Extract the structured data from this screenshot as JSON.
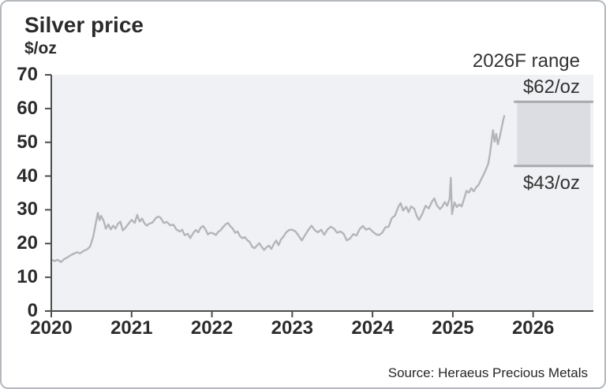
{
  "card": {
    "title": "Silver price",
    "unit_label": "$/oz",
    "source": "Source: Heraeus Precious Metals"
  },
  "chart_data": {
    "type": "line",
    "title": "Silver price",
    "ylabel": "$/oz",
    "xlabel": "",
    "legend": "none",
    "grid": false,
    "xlim": [
      2020,
      2026.75
    ],
    "ylim": [
      0,
      70
    ],
    "x_ticks": [
      2020,
      2021,
      2022,
      2023,
      2024,
      2025,
      2026
    ],
    "y_ticks": [
      0,
      10,
      20,
      30,
      40,
      50,
      60,
      70
    ],
    "forecast": {
      "label": "2026F range",
      "high_label": "$62/oz",
      "low_label": "$43/oz",
      "high": 62,
      "low": 43,
      "x_start": 2025.76,
      "x_end": 2026.75
    },
    "colors": {
      "plot_bg": "#f0f1f4",
      "line": "#b4b5b9",
      "box_fill": "#dcdde2",
      "box_edge": "#a9aaae",
      "axis": "#4d4d4d",
      "text": "#2b2b2b"
    },
    "series": [
      {
        "name": "Silver price ($/oz)",
        "points": [
          [
            2020.0,
            15.3
          ],
          [
            2020.04,
            14.8
          ],
          [
            2020.08,
            15.2
          ],
          [
            2020.12,
            14.5
          ],
          [
            2020.16,
            15.4
          ],
          [
            2020.2,
            15.9
          ],
          [
            2020.24,
            16.5
          ],
          [
            2020.28,
            17.0
          ],
          [
            2020.32,
            17.4
          ],
          [
            2020.36,
            17.1
          ],
          [
            2020.4,
            17.8
          ],
          [
            2020.44,
            18.2
          ],
          [
            2020.48,
            19.0
          ],
          [
            2020.52,
            21.8
          ],
          [
            2020.55,
            25.5
          ],
          [
            2020.58,
            29.1
          ],
          [
            2020.6,
            26.9
          ],
          [
            2020.62,
            28.2
          ],
          [
            2020.65,
            26.8
          ],
          [
            2020.68,
            24.4
          ],
          [
            2020.71,
            25.7
          ],
          [
            2020.74,
            24.2
          ],
          [
            2020.77,
            25.3
          ],
          [
            2020.8,
            24.4
          ],
          [
            2020.83,
            25.9
          ],
          [
            2020.86,
            26.5
          ],
          [
            2020.89,
            23.9
          ],
          [
            2020.92,
            24.6
          ],
          [
            2020.96,
            25.8
          ],
          [
            2021.0,
            27.0
          ],
          [
            2021.04,
            26.1
          ],
          [
            2021.07,
            28.5
          ],
          [
            2021.1,
            26.5
          ],
          [
            2021.13,
            27.4
          ],
          [
            2021.16,
            26.0
          ],
          [
            2021.19,
            25.3
          ],
          [
            2021.22,
            25.9
          ],
          [
            2021.26,
            26.2
          ],
          [
            2021.3,
            27.5
          ],
          [
            2021.33,
            28.0
          ],
          [
            2021.36,
            27.7
          ],
          [
            2021.4,
            26.1
          ],
          [
            2021.44,
            26.4
          ],
          [
            2021.48,
            25.4
          ],
          [
            2021.52,
            25.6
          ],
          [
            2021.56,
            24.1
          ],
          [
            2021.6,
            23.6
          ],
          [
            2021.63,
            24.1
          ],
          [
            2021.66,
            22.5
          ],
          [
            2021.7,
            22.9
          ],
          [
            2021.73,
            21.6
          ],
          [
            2021.77,
            23.2
          ],
          [
            2021.8,
            24.0
          ],
          [
            2021.83,
            23.3
          ],
          [
            2021.86,
            24.7
          ],
          [
            2021.89,
            25.2
          ],
          [
            2021.92,
            24.2
          ],
          [
            2021.95,
            22.7
          ],
          [
            2021.98,
            23.2
          ],
          [
            2022.02,
            23.0
          ],
          [
            2022.05,
            22.5
          ],
          [
            2022.08,
            23.5
          ],
          [
            2022.11,
            24.0
          ],
          [
            2022.14,
            24.9
          ],
          [
            2022.17,
            25.7
          ],
          [
            2022.2,
            26.1
          ],
          [
            2022.23,
            25.1
          ],
          [
            2022.26,
            24.4
          ],
          [
            2022.29,
            23.2
          ],
          [
            2022.32,
            23.6
          ],
          [
            2022.35,
            22.2
          ],
          [
            2022.38,
            21.6
          ],
          [
            2022.41,
            21.9
          ],
          [
            2022.44,
            21.0
          ],
          [
            2022.47,
            20.5
          ],
          [
            2022.5,
            19.1
          ],
          [
            2022.53,
            18.6
          ],
          [
            2022.56,
            19.4
          ],
          [
            2022.59,
            20.1
          ],
          [
            2022.62,
            19.0
          ],
          [
            2022.65,
            18.1
          ],
          [
            2022.68,
            18.9
          ],
          [
            2022.71,
            19.4
          ],
          [
            2022.74,
            18.4
          ],
          [
            2022.77,
            19.8
          ],
          [
            2022.8,
            20.9
          ],
          [
            2022.83,
            19.5
          ],
          [
            2022.86,
            21.2
          ],
          [
            2022.89,
            22.0
          ],
          [
            2022.92,
            23.2
          ],
          [
            2022.96,
            24.0
          ],
          [
            2023.0,
            24.1
          ],
          [
            2023.04,
            23.6
          ],
          [
            2023.08,
            22.3
          ],
          [
            2023.12,
            20.9
          ],
          [
            2023.16,
            22.5
          ],
          [
            2023.2,
            24.0
          ],
          [
            2023.24,
            25.3
          ],
          [
            2023.28,
            24.0
          ],
          [
            2023.32,
            23.3
          ],
          [
            2023.36,
            24.1
          ],
          [
            2023.4,
            22.6
          ],
          [
            2023.44,
            24.2
          ],
          [
            2023.48,
            25.0
          ],
          [
            2023.52,
            24.4
          ],
          [
            2023.56,
            23.2
          ],
          [
            2023.6,
            23.6
          ],
          [
            2023.64,
            22.9
          ],
          [
            2023.68,
            20.9
          ],
          [
            2023.72,
            21.5
          ],
          [
            2023.76,
            22.8
          ],
          [
            2023.8,
            22.4
          ],
          [
            2023.84,
            24.3
          ],
          [
            2023.88,
            25.2
          ],
          [
            2023.92,
            24.1
          ],
          [
            2023.96,
            24.5
          ],
          [
            2024.0,
            23.6
          ],
          [
            2024.04,
            22.8
          ],
          [
            2024.08,
            22.5
          ],
          [
            2024.12,
            23.2
          ],
          [
            2024.16,
            24.8
          ],
          [
            2024.2,
            25.0
          ],
          [
            2024.24,
            27.5
          ],
          [
            2024.28,
            28.3
          ],
          [
            2024.32,
            30.8
          ],
          [
            2024.35,
            32.0
          ],
          [
            2024.38,
            29.8
          ],
          [
            2024.42,
            30.9
          ],
          [
            2024.45,
            29.3
          ],
          [
            2024.48,
            31.0
          ],
          [
            2024.52,
            30.3
          ],
          [
            2024.55,
            28.2
          ],
          [
            2024.58,
            27.0
          ],
          [
            2024.62,
            28.8
          ],
          [
            2024.66,
            31.2
          ],
          [
            2024.7,
            30.4
          ],
          [
            2024.74,
            32.4
          ],
          [
            2024.77,
            33.4
          ],
          [
            2024.8,
            31.4
          ],
          [
            2024.84,
            30.2
          ],
          [
            2024.87,
            31.0
          ],
          [
            2024.9,
            32.3
          ],
          [
            2024.93,
            31.2
          ],
          [
            2024.96,
            33.3
          ],
          [
            2024.975,
            39.5
          ],
          [
            2024.99,
            28.7
          ],
          [
            2025.02,
            32.2
          ],
          [
            2025.05,
            30.8
          ],
          [
            2025.08,
            31.6
          ],
          [
            2025.11,
            31.0
          ],
          [
            2025.14,
            33.2
          ],
          [
            2025.17,
            35.6
          ],
          [
            2025.2,
            35.1
          ],
          [
            2025.23,
            36.4
          ],
          [
            2025.26,
            35.5
          ],
          [
            2025.29,
            36.6
          ],
          [
            2025.32,
            37.4
          ],
          [
            2025.35,
            38.9
          ],
          [
            2025.38,
            40.3
          ],
          [
            2025.41,
            41.8
          ],
          [
            2025.44,
            43.6
          ],
          [
            2025.46,
            46.2
          ],
          [
            2025.48,
            49.8
          ],
          [
            2025.5,
            53.6
          ],
          [
            2025.52,
            50.2
          ],
          [
            2025.54,
            52.5
          ],
          [
            2025.56,
            49.4
          ],
          [
            2025.58,
            51.2
          ],
          [
            2025.6,
            53.4
          ],
          [
            2025.62,
            55.8
          ],
          [
            2025.64,
            57.8
          ]
        ]
      }
    ]
  }
}
